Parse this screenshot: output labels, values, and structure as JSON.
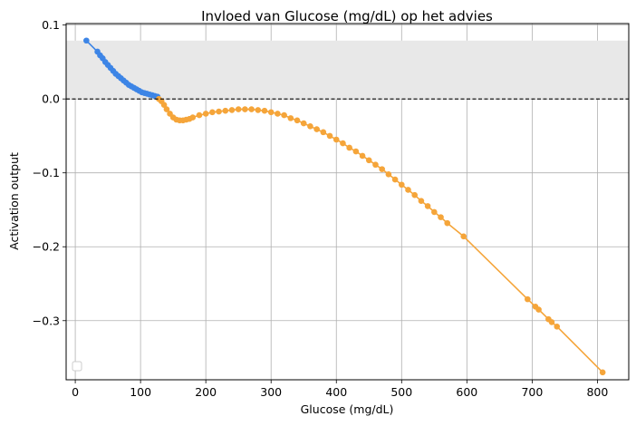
{
  "chart_data": {
    "type": "line",
    "title": "Invloed van Glucose (mg/dL) op het advies",
    "xlabel": "Glucose (mg/dL)",
    "ylabel": "Activation output",
    "xlim": [
      -14,
      848
    ],
    "ylim": [
      -0.38,
      0.102
    ],
    "xticks": [
      0,
      100,
      200,
      300,
      400,
      500,
      600,
      700,
      800
    ],
    "xtick_labels": [
      "0",
      "100",
      "200",
      "300",
      "400",
      "500",
      "600",
      "700",
      "800"
    ],
    "yticks": [
      0.1,
      0.0,
      -0.1,
      -0.2,
      -0.3
    ],
    "ytick_labels": [
      "0.1",
      "0.0",
      "−0.1",
      "−0.2",
      "−0.3"
    ],
    "grid": true,
    "legend": "lower-left (empty)",
    "shaded_band": {
      "y_from": 0.0,
      "y_to": 0.079,
      "color": "#e8e8e8"
    },
    "reference_line": {
      "y": 0.0,
      "style": "dashed",
      "color": "#000000"
    },
    "series": [
      {
        "color": "#3d85e6",
        "x": [
          17,
          34,
          38,
          42,
          46,
          50,
          54,
          58,
          62,
          66,
          70,
          74,
          78,
          82,
          86,
          90,
          94,
          98,
          102,
          106,
          110,
          114,
          118,
          122,
          126
        ],
        "y": [
          0.079,
          0.064,
          0.059,
          0.055,
          0.05,
          0.046,
          0.042,
          0.038,
          0.034,
          0.031,
          0.028,
          0.025,
          0.022,
          0.019,
          0.017,
          0.015,
          0.013,
          0.011,
          0.009,
          0.008,
          0.007,
          0.006,
          0.005,
          0.004,
          0.003
        ]
      },
      {
        "color": "#f5a53a",
        "x": [
          128,
          132,
          136,
          140,
          145,
          150,
          155,
          160,
          165,
          170,
          175,
          180,
          190,
          200,
          210,
          220,
          230,
          240,
          250,
          260,
          270,
          280,
          290,
          300,
          310,
          320,
          330,
          340,
          350,
          360,
          370,
          380,
          390,
          400,
          410,
          420,
          430,
          440,
          450,
          460,
          470,
          480,
          490,
          500,
          510,
          520,
          530,
          540,
          550,
          560,
          570,
          595,
          693,
          705,
          710,
          725,
          730,
          738,
          808
        ],
        "y": [
          0.0,
          -0.003,
          -0.008,
          -0.014,
          -0.02,
          -0.025,
          -0.028,
          -0.029,
          -0.029,
          -0.028,
          -0.027,
          -0.025,
          -0.022,
          -0.02,
          -0.018,
          -0.017,
          -0.016,
          -0.015,
          -0.014,
          -0.014,
          -0.014,
          -0.015,
          -0.016,
          -0.018,
          -0.02,
          -0.022,
          -0.026,
          -0.029,
          -0.033,
          -0.037,
          -0.041,
          -0.045,
          -0.05,
          -0.055,
          -0.06,
          -0.066,
          -0.071,
          -0.077,
          -0.083,
          -0.089,
          -0.095,
          -0.102,
          -0.109,
          -0.116,
          -0.123,
          -0.13,
          -0.138,
          -0.145,
          -0.153,
          -0.16,
          -0.168,
          -0.186,
          -0.271,
          -0.281,
          -0.285,
          -0.298,
          -0.302,
          -0.308,
          -0.37
        ]
      }
    ]
  }
}
